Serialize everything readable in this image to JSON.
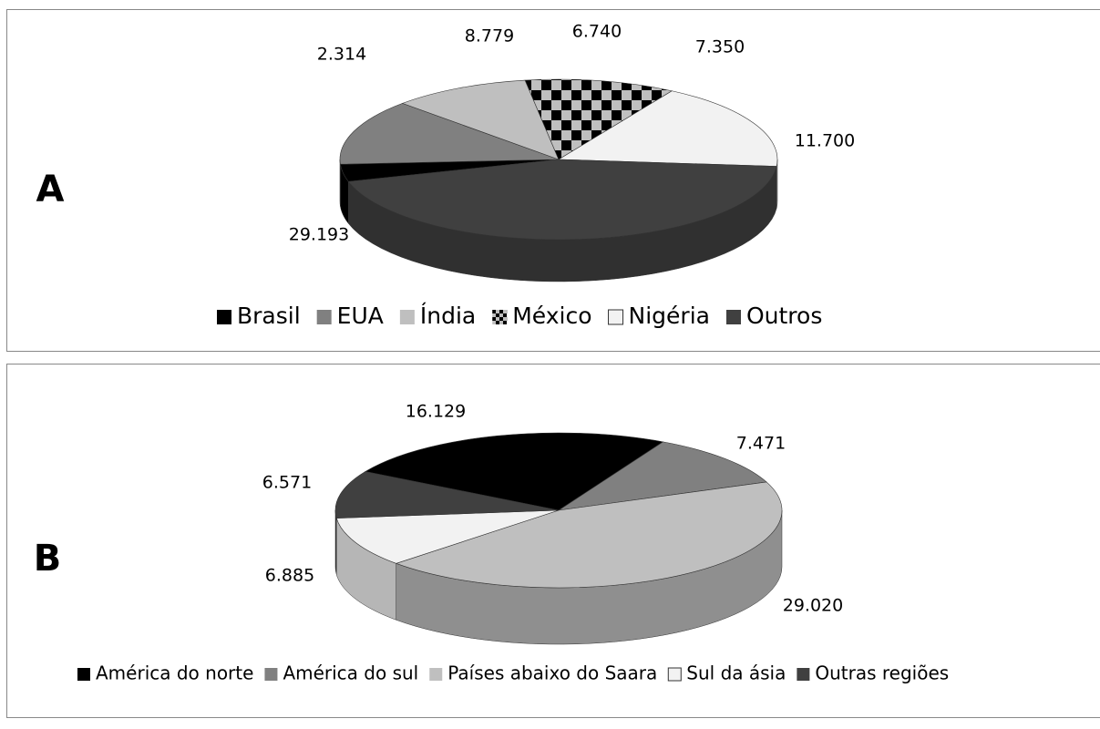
{
  "chart_data": [
    {
      "type": "pie3d",
      "label": "A",
      "categories": [
        "Brasil",
        "EUA",
        "Índia",
        "México",
        "Nigéria",
        "Outros"
      ],
      "values": [
        2.314,
        8.779,
        6.74,
        7.35,
        11.7,
        29.193
      ],
      "value_labels": [
        "2.314",
        "8.779",
        "6.740",
        "7.350",
        "11.700",
        "29.193"
      ],
      "colors": [
        "#000000",
        "#808080",
        "#bfbfbf",
        "checker",
        "#f2f2f2",
        "#404040"
      ]
    },
    {
      "type": "pie3d",
      "label": "B",
      "categories": [
        "América do norte",
        "América do sul",
        "Países abaixo do Saara",
        "Sul da ásia",
        "Outras regiões"
      ],
      "values": [
        16.129,
        7.471,
        29.02,
        6.885,
        6.571
      ],
      "value_labels": [
        "16.129",
        "7.471",
        "29.020",
        "6.885",
        "6.571"
      ],
      "colors": [
        "#000000",
        "#808080",
        "#bfbfbf",
        "#f2f2f2",
        "#404040"
      ]
    }
  ]
}
